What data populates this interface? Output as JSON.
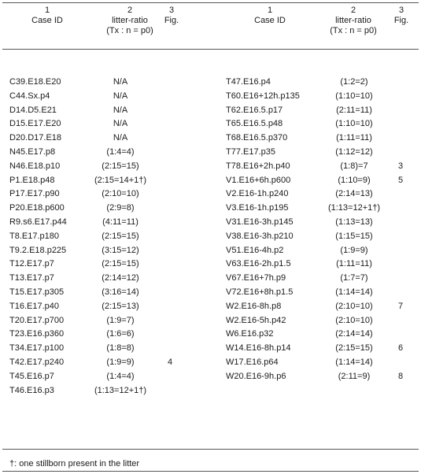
{
  "headers": {
    "left": {
      "n1": "1",
      "t1": "Case ID",
      "n2": "2",
      "t2a": "litter-ratio",
      "t2b": "(Tx : n = p0)",
      "n3": "3",
      "t3": "Fig."
    },
    "right": {
      "n1": "1",
      "t1": "Case ID",
      "n2": "2",
      "t2a": "litter-ratio",
      "t2b": "(Tx : n = p0)",
      "n3": "3",
      "t3": "Fig."
    }
  },
  "left_rows": [
    {
      "id": "C39.E18.E20",
      "ratio": "N/A",
      "fig": ""
    },
    {
      "id": "C44.Sx.p4",
      "ratio": "N/A",
      "fig": ""
    },
    {
      "id": "D14.D5.E21",
      "ratio": "N/A",
      "fig": ""
    },
    {
      "id": "D15.E17.E20",
      "ratio": "N/A",
      "fig": ""
    },
    {
      "id": "D20.D17.E18",
      "ratio": "N/A",
      "fig": ""
    },
    {
      "id": "N45.E17.p8",
      "ratio": "(1:4=4)",
      "fig": ""
    },
    {
      "id": "N46.E18.p10",
      "ratio": "(2:15=15)",
      "fig": ""
    },
    {
      "id": "P1.E18.p48",
      "ratio": "(2:15=14+1†)",
      "fig": ""
    },
    {
      "id": "P17.E17.p90",
      "ratio": "(2:10=10)",
      "fig": ""
    },
    {
      "id": "P20.E18.p600",
      "ratio": "(2:9=8)",
      "fig": ""
    },
    {
      "id": "R9.s6.E17.p44",
      "ratio": "(4:11=11)",
      "fig": ""
    },
    {
      "id": "T8.E17.p180",
      "ratio": "(2:15=15)",
      "fig": ""
    },
    {
      "id": "T9.2.E18.p225",
      "ratio": "(3:15=12)",
      "fig": ""
    },
    {
      "id": "T12.E17.p7",
      "ratio": "(2:15=15)",
      "fig": ""
    },
    {
      "id": "T13.E17.p7",
      "ratio": "(2:14=12)",
      "fig": ""
    },
    {
      "id": "T15.E17.p305",
      "ratio": "(3:16=14)",
      "fig": ""
    },
    {
      "id": "T16.E17.p40",
      "ratio": "(2:15=13)",
      "fig": ""
    },
    {
      "id": "T20.E17.p700",
      "ratio": "(1:9=7)",
      "fig": ""
    },
    {
      "id": "T23.E16.p360",
      "ratio": "(1:6=6)",
      "fig": ""
    },
    {
      "id": "T34.E17.p100",
      "ratio": "(1:8=8)",
      "fig": ""
    },
    {
      "id": "T42.E17.p240",
      "ratio": "(1:9=9)",
      "fig": "4"
    },
    {
      "id": "T45.E16.p7",
      "ratio": "(1:4=4)",
      "fig": ""
    },
    {
      "id": "T46.E16.p3",
      "ratio": "(1:13=12+1†)",
      "fig": ""
    }
  ],
  "right_rows": [
    {
      "id": "T47.E16.p4",
      "ratio": "(1:2=2)",
      "fig": ""
    },
    {
      "id": "T60.E16+12h.p135",
      "ratio": "(1:10=10)",
      "fig": ""
    },
    {
      "id": "T62.E16.5.p17",
      "ratio": "(2:11=11)",
      "fig": ""
    },
    {
      "id": "T65.E16.5.p48",
      "ratio": "(1:10=10)",
      "fig": ""
    },
    {
      "id": "T68.E16.5.p370",
      "ratio": "(1:11=11)",
      "fig": ""
    },
    {
      "id": "T77.E17.p35",
      "ratio": "(1:12=12)",
      "fig": ""
    },
    {
      "id": "T78.E16+2h.p40",
      "ratio": "(1:8)=7",
      "fig": "3"
    },
    {
      "id": "V1.E16+6h.p600",
      "ratio": "(1:10=9)",
      "fig": "5"
    },
    {
      "id": "V2.E16-1h.p240",
      "ratio": "(2:14=13)",
      "fig": ""
    },
    {
      "id": "V3.E16-1h.p195",
      "ratio": "(1:13=12+1†)",
      "fig": ""
    },
    {
      "id": "V31.E16-3h.p145",
      "ratio": "(1:13=13)",
      "fig": ""
    },
    {
      "id": "V38.E16-3h.p210",
      "ratio": "(1:15=15)",
      "fig": ""
    },
    {
      "id": "V51.E16-4h.p2",
      "ratio": "(1:9=9)",
      "fig": ""
    },
    {
      "id": "V63.E16-2h.p1.5",
      "ratio": "(1:11=11)",
      "fig": ""
    },
    {
      "id": "V67.E16+7h.p9",
      "ratio": "(1:7=7)",
      "fig": ""
    },
    {
      "id": "V72.E16+8h.p1.5",
      "ratio": "(1:14=14)",
      "fig": ""
    },
    {
      "id": "W2.E16-8h.p8",
      "ratio": "(2:10=10)",
      "fig": "7"
    },
    {
      "id": "W2.E16-5h.p42",
      "ratio": "(2:10=10)",
      "fig": ""
    },
    {
      "id": "W6.E16.p32",
      "ratio": "(2:14=14)",
      "fig": ""
    },
    {
      "id": "W14.E16-8h.p14",
      "ratio": "(2:15=15)",
      "fig": "6"
    },
    {
      "id": "W17.E16.p64",
      "ratio": "(1:14=14)",
      "fig": ""
    },
    {
      "id": "W20.E16-9h.p6",
      "ratio": "(2:11=9)",
      "fig": "8"
    }
  ],
  "footnote": "†: one stillborn present in the litter"
}
